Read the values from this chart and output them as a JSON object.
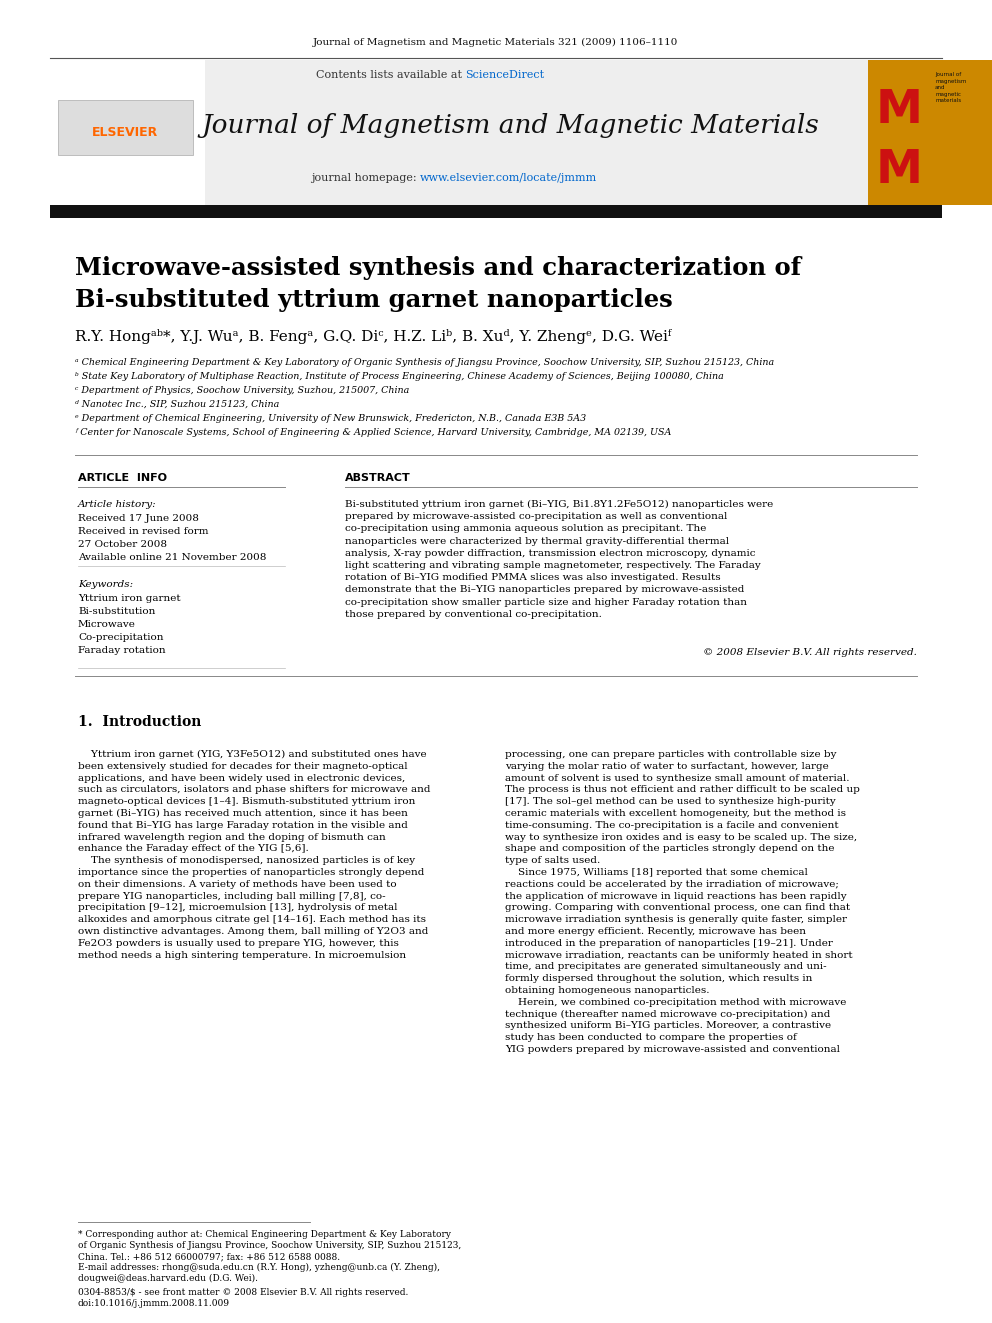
{
  "journal_citation": "Journal of Magnetism and Magnetic Materials 321 (2009) 1106–1110",
  "journal_name": "Journal of Magnetism and Magnetic Materials",
  "sciencedirect_color": "#0066CC",
  "homepage_url": "www.elsevier.com/locate/jmmm",
  "homepage_color": "#0066CC",
  "title_line1": "Microwave-assisted synthesis and characterization of",
  "title_line2": "Bi-substituted yttrium garnet nanoparticles",
  "affil_a": "ᵃ Chemical Engineering Department & Key Laboratory of Organic Synthesis of Jiangsu Province, Soochow University, SIP, Suzhou 215123, China",
  "affil_b": "ᵇ State Key Laboratory of Multiphase Reaction, Institute of Process Engineering, Chinese Academy of Sciences, Beijing 100080, China",
  "affil_c": "ᶜ Department of Physics, Soochow University, Suzhou, 215007, China",
  "affil_d": "ᵈ Nanotec Inc., SIP, Suzhou 215123, China",
  "affil_e": "ᵉ Department of Chemical Engineering, University of New Brunswick, Fredericton, N.B., Canada E3B 5A3",
  "affil_f": "ᶠ Center for Nanoscale Systems, School of Engineering & Applied Science, Harvard University, Cambridge, MA 02139, USA",
  "article_info_header": "ARTICLE  INFO",
  "abstract_header": "ABSTRACT",
  "article_history_label": "Article history:",
  "received_label": "Received 17 June 2008",
  "revised_label": "Received in revised form",
  "revised_date": "27 October 2008",
  "available_label": "Available online 21 November 2008",
  "keywords_label": "Keywords:",
  "keywords": [
    "Yttrium iron garnet",
    "Bi-substitution",
    "Microwave",
    "Co-precipitation",
    "Faraday rotation"
  ],
  "abstract_text": "Bi-substituted yttrium iron garnet (Bi–YIG, Bi1.8Y1.2Fe5O12) nanoparticles were prepared by microwave-assisted co-precipitation as well as conventional co-precipitation using ammonia aqueous solution as precipitant. The nanoparticles were characterized by thermal gravity-differential thermal analysis, X-ray powder diffraction, transmission electron microscopy, dynamic light scattering and vibrating sample magnetometer, respectively. The Faraday rotation of Bi–YIG modified PMMA slices was also investigated. Results demonstrate that the Bi–YIG nanoparticles prepared by microwave-assisted co-precipitation show smaller particle size and higher Faraday rotation than those prepared by conventional co-precipitation.",
  "copyright_line": "© 2008 Elsevier B.V. All rights reserved.",
  "intro_header": "1.  Introduction",
  "intro_col1_lines": [
    "    Yttrium iron garnet (YIG, Y3Fe5O12) and substituted ones have",
    "been extensively studied for decades for their magneto-optical",
    "applications, and have been widely used in electronic devices,",
    "such as circulators, isolators and phase shifters for microwave and",
    "magneto-optical devices [1–4]. Bismuth-substituted yttrium iron",
    "garnet (Bi–YIG) has received much attention, since it has been",
    "found that Bi–YIG has large Faraday rotation in the visible and",
    "infrared wavelength region and the doping of bismuth can",
    "enhance the Faraday effect of the YIG [5,6].",
    "    The synthesis of monodispersed, nanosized particles is of key",
    "importance since the properties of nanoparticles strongly depend",
    "on their dimensions. A variety of methods have been used to",
    "prepare YIG nanoparticles, including ball milling [7,8], co-",
    "precipitation [9–12], microemulsion [13], hydrolysis of metal",
    "alkoxides and amorphous citrate gel [14–16]. Each method has its",
    "own distinctive advantages. Among them, ball milling of Y2O3 and",
    "Fe2O3 powders is usually used to prepare YIG, however, this",
    "method needs a high sintering temperature. In microemulsion"
  ],
  "intro_col2_lines": [
    "processing, one can prepare particles with controllable size by",
    "varying the molar ratio of water to surfactant, however, large",
    "amount of solvent is used to synthesize small amount of material.",
    "The process is thus not efficient and rather difficult to be scaled up",
    "[17]. The sol–gel method can be used to synthesize high-purity",
    "ceramic materials with excellent homogeneity, but the method is",
    "time-consuming. The co-precipitation is a facile and convenient",
    "way to synthesize iron oxides and is easy to be scaled up. The size,",
    "shape and composition of the particles strongly depend on the",
    "type of salts used.",
    "    Since 1975, Williams [18] reported that some chemical",
    "reactions could be accelerated by the irradiation of microwave;",
    "the application of microwave in liquid reactions has been rapidly",
    "growing. Comparing with conventional process, one can find that",
    "microwave irradiation synthesis is generally quite faster, simpler",
    "and more energy efficient. Recently, microwave has been",
    "introduced in the preparation of nanoparticles [19–21]. Under",
    "microwave irradiation, reactants can be uniformly heated in short",
    "time, and precipitates are generated simultaneously and uni-",
    "formly dispersed throughout the solution, which results in",
    "obtaining homogeneous nanoparticles.",
    "    Herein, we combined co-precipitation method with microwave",
    "technique (thereafter named microwave co-precipitation) and",
    "synthesized uniform Bi–YIG particles. Moreover, a contrastive",
    "study has been conducted to compare the properties of",
    "YIG powders prepared by microwave-assisted and conventional"
  ],
  "footnote_lines": [
    "* Corresponding author at: Chemical Engineering Department & Key Laboratory",
    "of Organic Synthesis of Jiangsu Province, Soochow University, SIP, Suzhou 215123,",
    "China. Tel.: +86 512 66000797; fax: +86 512 6588 0088."
  ],
  "email_line": "E-mail addresses: rhong@suda.edu.cn (R.Y. Hong), yzheng@unb.ca (Y. Zheng),",
  "email_line2": "dougwei@deas.harvard.edu (D.G. Wei).",
  "issn_line": "0304-8853/$ - see front matter © 2008 Elsevier B.V. All rights reserved.",
  "doi_line": "doi:10.1016/j.jmmm.2008.11.009",
  "bg_color": "#FFFFFF",
  "elsevier_orange": "#FF6600",
  "logo_bg": "#CC8800",
  "logo_red": "#CC1111"
}
